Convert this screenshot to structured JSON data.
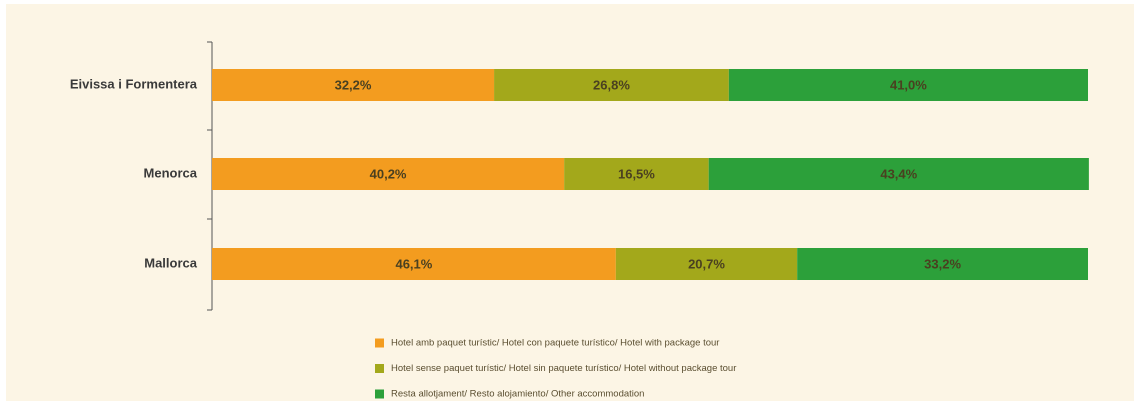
{
  "chart_data": {
    "type": "stacked-bar-horizontal",
    "categories": [
      "Eivissa i Formentera",
      "Menorca",
      "Mallorca"
    ],
    "xlim": [
      0,
      100
    ],
    "series": [
      {
        "name": "Hotel amb paquet turístic/ Hotel con paquete turístico/ Hotel with package tour",
        "color": "#f39c1f",
        "values": [
          32.2,
          40.2,
          46.1
        ],
        "value_labels": [
          "32,2%",
          "40,2%",
          "46,1%"
        ]
      },
      {
        "name": "Hotel sense paquet turístic/ Hotel sin paquete turístico/ Hotel without package tour",
        "color": "#a3a81b",
        "values": [
          26.8,
          16.5,
          20.7
        ],
        "value_labels": [
          "26,8%",
          "16,5%",
          "20,7%"
        ]
      },
      {
        "name": "Resta allotjament/ Resto alojamiento/ Other accommodation",
        "color": "#2ca03a",
        "values": [
          41.0,
          43.4,
          33.2
        ],
        "value_labels": [
          "41,0%",
          "43,4%",
          "33,2%"
        ]
      }
    ]
  }
}
